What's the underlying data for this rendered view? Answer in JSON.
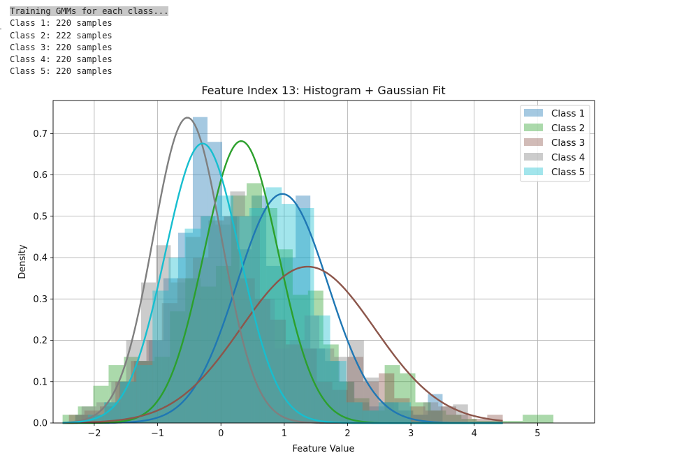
{
  "console": {
    "lines": [
      "Training GMMs for each class...",
      "Class 1: 220 samples",
      "Class 2: 222 samples",
      "Class 3: 220 samples",
      "Class 4: 220 samples",
      "Class 5: 220 samples"
    ]
  },
  "chart_data": {
    "type": "histogram+line",
    "title": "Feature Index 13: Histogram + Gaussian Fit",
    "xlabel": "Feature Value",
    "ylabel": "Density",
    "xlim": [
      -2.65,
      5.9
    ],
    "ylim": [
      0.0,
      0.78
    ],
    "xticks": [
      -2,
      -1,
      0,
      1,
      2,
      3,
      4,
      5
    ],
    "xtick_labels": [
      "−2",
      "−1",
      "0",
      "1",
      "2",
      "3",
      "4",
      "5"
    ],
    "yticks": [
      0.0,
      0.1,
      0.2,
      0.3,
      0.4,
      0.5,
      0.6,
      0.7
    ],
    "ytick_labels": [
      "0.0",
      "0.1",
      "0.2",
      "0.3",
      "0.4",
      "0.5",
      "0.6",
      "0.7"
    ],
    "grid": true,
    "legend_position": "top-right",
    "series": [
      {
        "name": "Class 1",
        "color": "#1f77b4",
        "mean": 0.97,
        "std": 0.72,
        "hist": {
          "range": [
            -2.3,
            3.5
          ],
          "bins": 25,
          "values": [
            0.02,
            0.02,
            0.05,
            0.1,
            0.15,
            0.2,
            0.35,
            0.46,
            0.74,
            0.68,
            0.5,
            0.42,
            0.55,
            0.38,
            0.4,
            0.55,
            0.18,
            0.15,
            0.1,
            0.05,
            0.04,
            0.05,
            0.03,
            0.02,
            0.07
          ]
        }
      },
      {
        "name": "Class 2",
        "color": "#2ca02c",
        "mean": 0.32,
        "std": 0.585,
        "hist": {
          "range": [
            -2.5,
            5.25
          ],
          "bins": 32,
          "values": [
            0.02,
            0.04,
            0.09,
            0.14,
            0.16,
            0.15,
            0.16,
            0.27,
            0.35,
            0.33,
            0.38,
            0.55,
            0.58,
            0.52,
            0.42,
            0.31,
            0.32,
            0.19,
            0.1,
            0.06,
            0.03,
            0.14,
            0.12,
            0.05,
            0.03,
            0.02,
            0.01,
            0.005,
            0.005,
            0.005,
            0.02,
            0.02
          ]
        }
      },
      {
        "name": "Class 3",
        "color": "#8c564b",
        "mean": 1.37,
        "std": 1.055,
        "hist": {
          "range": [
            -2.4,
            4.45
          ],
          "bins": 28,
          "values": [
            0.02,
            0.03,
            0.04,
            0.1,
            0.15,
            0.2,
            0.29,
            0.35,
            0.4,
            0.49,
            0.5,
            0.35,
            0.3,
            0.25,
            0.19,
            0.18,
            0.1,
            0.08,
            0.16,
            0.1,
            0.12,
            0.06,
            0.04,
            0.03,
            0.04,
            0.02,
            0.01,
            0.02
          ]
        }
      },
      {
        "name": "Class 4",
        "color": "#7f7f7f",
        "mean": -0.53,
        "std": 0.54,
        "hist": {
          "range": [
            -2.2,
            3.9
          ],
          "bins": 26,
          "values": [
            0.04,
            0.05,
            0.1,
            0.2,
            0.34,
            0.43,
            0.34,
            0.45,
            0.5,
            0.48,
            0.56,
            0.5,
            0.3,
            0.18,
            0.2,
            0.26,
            0.18,
            0.16,
            0.2,
            0.11,
            0.05,
            0.03,
            0.02,
            0.05,
            0.04,
            0.045
          ]
        }
      },
      {
        "name": "Class 5",
        "color": "#17becf",
        "mean": -0.29,
        "std": 0.59,
        "hist": {
          "range": [
            -2.1,
            3.0
          ],
          "bins": 20,
          "values": [
            0.02,
            0.05,
            0.1,
            0.14,
            0.32,
            0.4,
            0.47,
            0.5,
            0.55,
            0.5,
            0.52,
            0.57,
            0.53,
            0.52,
            0.26,
            0.15,
            0.05,
            0.03,
            0.05,
            0.05
          ]
        }
      }
    ]
  }
}
